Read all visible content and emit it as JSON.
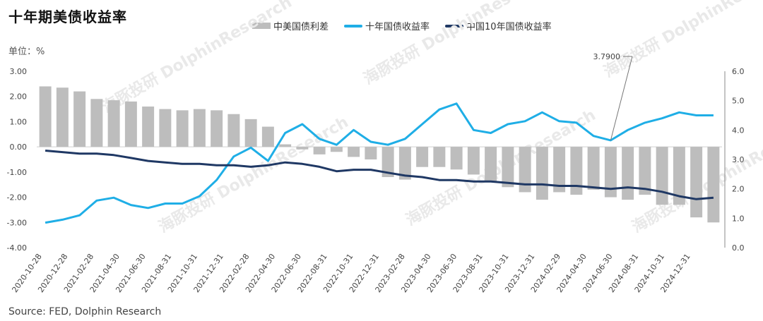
{
  "title": "十年期美债收益率",
  "unit": "单位：%",
  "source": "Source: FED, Dolphin Research",
  "legend": [
    "中美国债利差",
    "十年国债收益率",
    "中国10年国债收益率"
  ],
  "watermark": "海豚投研 DolphinResearch",
  "annotation": "3.7900",
  "colors": {
    "spread": "#bdbdbd",
    "us10y": "#1faee6",
    "cn10y": "#1f3864"
  },
  "chart_data": {
    "type": "bar+line",
    "x_ticks": [
      "2020-10-28",
      "2020-12-28",
      "2021-02-28",
      "2021-04-30",
      "2021-06-30",
      "2021-08-31",
      "2021-10-31",
      "2021-12-31",
      "2022-02-28",
      "2022-04-30",
      "2022-06-30",
      "2022-08-31",
      "2022-10-31",
      "2022-12-31",
      "2023-02-28",
      "2023-04-30",
      "2023-06-30",
      "2023-08-31",
      "2023-10-31",
      "2023-12-31",
      "2024-02-29",
      "2024-04-30",
      "2024-06-30",
      "2024-08-31",
      "2024-10-31",
      "2024-12-31"
    ],
    "left_axis": {
      "ticks": [
        "3.00",
        "2.00",
        "1.00",
        "0.00",
        "-1.00",
        "-2.00",
        "-3.00",
        "-4.00"
      ],
      "range": [
        -4,
        3
      ]
    },
    "right_axis": {
      "ticks": [
        "6.0",
        "5.0",
        "4.0",
        "3.0",
        "2.0",
        "1.0",
        "0.0"
      ],
      "range": [
        0,
        6
      ]
    },
    "series": [
      {
        "name": "中美国债利差",
        "type": "bar",
        "axis": "left",
        "values": [
          2.4,
          2.35,
          2.2,
          1.9,
          1.85,
          1.8,
          1.6,
          1.5,
          1.45,
          1.5,
          1.45,
          1.3,
          1.1,
          0.8,
          0.1,
          -0.1,
          -0.3,
          -0.2,
          -0.4,
          -0.5,
          -1.2,
          -1.3,
          -0.8,
          -0.8,
          -0.9,
          -1.1,
          -1.4,
          -1.6,
          -1.8,
          -2.1,
          -1.8,
          -1.9,
          -1.7,
          -2.0,
          -2.1,
          -1.9,
          -2.3,
          -2.3,
          -2.8,
          -3.0
        ]
      },
      {
        "name": "十年国债收益率",
        "type": "line",
        "axis": "right",
        "values": [
          0.85,
          0.95,
          1.1,
          1.6,
          1.7,
          1.45,
          1.35,
          1.5,
          1.5,
          1.75,
          2.3,
          3.1,
          3.4,
          2.95,
          3.9,
          4.2,
          3.7,
          3.5,
          4.0,
          3.6,
          3.5,
          3.7,
          4.2,
          4.7,
          4.9,
          4.0,
          3.9,
          4.2,
          4.3,
          4.6,
          4.3,
          4.25,
          3.8,
          3.65,
          4.0,
          4.25,
          4.4,
          4.6,
          4.5,
          4.5
        ]
      },
      {
        "name": "中国10年国债收益率",
        "type": "line",
        "axis": "right",
        "values": [
          3.3,
          3.25,
          3.2,
          3.2,
          3.15,
          3.05,
          2.95,
          2.9,
          2.85,
          2.85,
          2.8,
          2.8,
          2.75,
          2.8,
          2.9,
          2.85,
          2.75,
          2.6,
          2.65,
          2.65,
          2.55,
          2.45,
          2.4,
          2.3,
          2.3,
          2.25,
          2.25,
          2.2,
          2.15,
          2.15,
          2.1,
          2.1,
          2.05,
          2.0,
          2.05,
          2.0,
          1.9,
          1.75,
          1.65,
          1.7
        ]
      }
    ]
  }
}
